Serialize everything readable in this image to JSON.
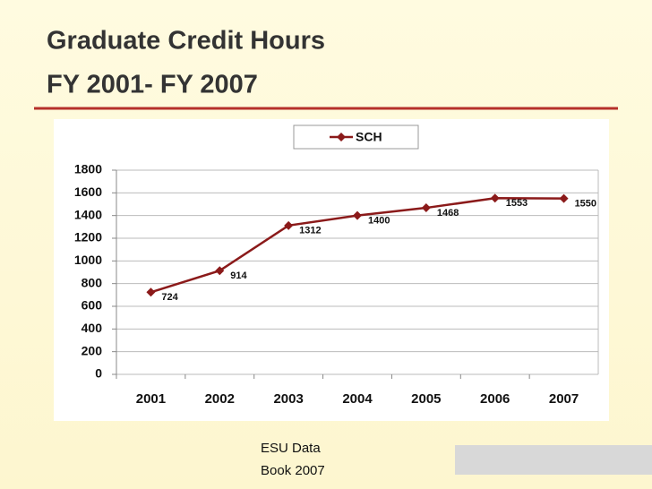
{
  "chart_data": {
    "type": "line",
    "title": [
      "Graduate Credit Hours",
      "FY 2001- FY 2007"
    ],
    "categories": [
      "2001",
      "2002",
      "2003",
      "2004",
      "2005",
      "2006",
      "2007"
    ],
    "series": [
      {
        "name": "SCH",
        "color": "#8b1a1a",
        "values": [
          724,
          914,
          1312,
          1400,
          1468,
          1553,
          1550
        ]
      }
    ],
    "ylim": [
      0,
      1800
    ],
    "yticks": [
      0,
      200,
      400,
      600,
      800,
      1000,
      1200,
      1400,
      1600,
      1800
    ],
    "grid": true,
    "legend": "top"
  },
  "source": "ESU Data Book 2007"
}
